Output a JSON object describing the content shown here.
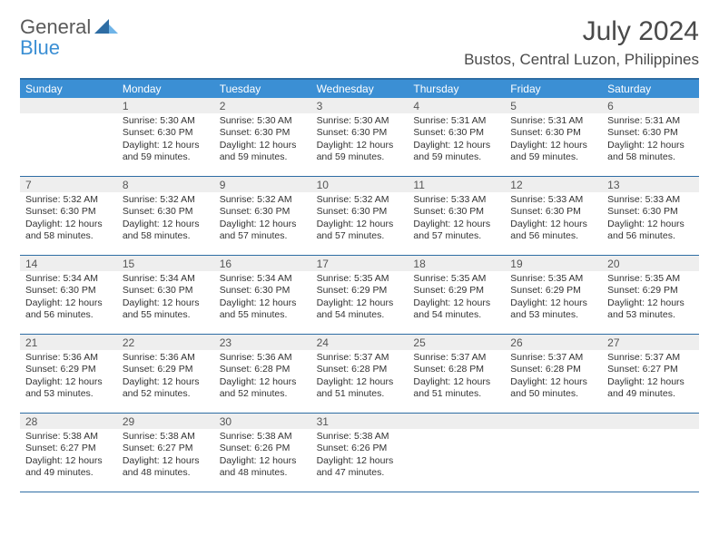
{
  "logo": {
    "word1": "General",
    "word2": "Blue"
  },
  "month_title": "July 2024",
  "location": "Bustos, Central Luzon, Philippines",
  "colors": {
    "header_bg": "#3b8fd4",
    "rule": "#2e6da4",
    "daynum_bg": "#eeeeee",
    "text": "#333333",
    "logo_gray": "#5a5a5a",
    "logo_blue": "#3b8fd4"
  },
  "weekdays": [
    "Sunday",
    "Monday",
    "Tuesday",
    "Wednesday",
    "Thursday",
    "Friday",
    "Saturday"
  ],
  "start_offset": 1,
  "days": [
    {
      "n": "1",
      "sunrise": "5:30 AM",
      "sunset": "6:30 PM",
      "daylight": "12 hours and 59 minutes."
    },
    {
      "n": "2",
      "sunrise": "5:30 AM",
      "sunset": "6:30 PM",
      "daylight": "12 hours and 59 minutes."
    },
    {
      "n": "3",
      "sunrise": "5:30 AM",
      "sunset": "6:30 PM",
      "daylight": "12 hours and 59 minutes."
    },
    {
      "n": "4",
      "sunrise": "5:31 AM",
      "sunset": "6:30 PM",
      "daylight": "12 hours and 59 minutes."
    },
    {
      "n": "5",
      "sunrise": "5:31 AM",
      "sunset": "6:30 PM",
      "daylight": "12 hours and 59 minutes."
    },
    {
      "n": "6",
      "sunrise": "5:31 AM",
      "sunset": "6:30 PM",
      "daylight": "12 hours and 58 minutes."
    },
    {
      "n": "7",
      "sunrise": "5:32 AM",
      "sunset": "6:30 PM",
      "daylight": "12 hours and 58 minutes."
    },
    {
      "n": "8",
      "sunrise": "5:32 AM",
      "sunset": "6:30 PM",
      "daylight": "12 hours and 58 minutes."
    },
    {
      "n": "9",
      "sunrise": "5:32 AM",
      "sunset": "6:30 PM",
      "daylight": "12 hours and 57 minutes."
    },
    {
      "n": "10",
      "sunrise": "5:32 AM",
      "sunset": "6:30 PM",
      "daylight": "12 hours and 57 minutes."
    },
    {
      "n": "11",
      "sunrise": "5:33 AM",
      "sunset": "6:30 PM",
      "daylight": "12 hours and 57 minutes."
    },
    {
      "n": "12",
      "sunrise": "5:33 AM",
      "sunset": "6:30 PM",
      "daylight": "12 hours and 56 minutes."
    },
    {
      "n": "13",
      "sunrise": "5:33 AM",
      "sunset": "6:30 PM",
      "daylight": "12 hours and 56 minutes."
    },
    {
      "n": "14",
      "sunrise": "5:34 AM",
      "sunset": "6:30 PM",
      "daylight": "12 hours and 56 minutes."
    },
    {
      "n": "15",
      "sunrise": "5:34 AM",
      "sunset": "6:30 PM",
      "daylight": "12 hours and 55 minutes."
    },
    {
      "n": "16",
      "sunrise": "5:34 AM",
      "sunset": "6:30 PM",
      "daylight": "12 hours and 55 minutes."
    },
    {
      "n": "17",
      "sunrise": "5:35 AM",
      "sunset": "6:29 PM",
      "daylight": "12 hours and 54 minutes."
    },
    {
      "n": "18",
      "sunrise": "5:35 AM",
      "sunset": "6:29 PM",
      "daylight": "12 hours and 54 minutes."
    },
    {
      "n": "19",
      "sunrise": "5:35 AM",
      "sunset": "6:29 PM",
      "daylight": "12 hours and 53 minutes."
    },
    {
      "n": "20",
      "sunrise": "5:35 AM",
      "sunset": "6:29 PM",
      "daylight": "12 hours and 53 minutes."
    },
    {
      "n": "21",
      "sunrise": "5:36 AM",
      "sunset": "6:29 PM",
      "daylight": "12 hours and 53 minutes."
    },
    {
      "n": "22",
      "sunrise": "5:36 AM",
      "sunset": "6:29 PM",
      "daylight": "12 hours and 52 minutes."
    },
    {
      "n": "23",
      "sunrise": "5:36 AM",
      "sunset": "6:28 PM",
      "daylight": "12 hours and 52 minutes."
    },
    {
      "n": "24",
      "sunrise": "5:37 AM",
      "sunset": "6:28 PM",
      "daylight": "12 hours and 51 minutes."
    },
    {
      "n": "25",
      "sunrise": "5:37 AM",
      "sunset": "6:28 PM",
      "daylight": "12 hours and 51 minutes."
    },
    {
      "n": "26",
      "sunrise": "5:37 AM",
      "sunset": "6:28 PM",
      "daylight": "12 hours and 50 minutes."
    },
    {
      "n": "27",
      "sunrise": "5:37 AM",
      "sunset": "6:27 PM",
      "daylight": "12 hours and 49 minutes."
    },
    {
      "n": "28",
      "sunrise": "5:38 AM",
      "sunset": "6:27 PM",
      "daylight": "12 hours and 49 minutes."
    },
    {
      "n": "29",
      "sunrise": "5:38 AM",
      "sunset": "6:27 PM",
      "daylight": "12 hours and 48 minutes."
    },
    {
      "n": "30",
      "sunrise": "5:38 AM",
      "sunset": "6:26 PM",
      "daylight": "12 hours and 48 minutes."
    },
    {
      "n": "31",
      "sunrise": "5:38 AM",
      "sunset": "6:26 PM",
      "daylight": "12 hours and 47 minutes."
    }
  ],
  "labels": {
    "sunrise": "Sunrise:",
    "sunset": "Sunset:",
    "daylight": "Daylight:"
  },
  "typography": {
    "title_fontsize": 30,
    "location_fontsize": 17,
    "weekday_fontsize": 12,
    "daynum_fontsize": 12,
    "body_fontsize": 10.5
  }
}
